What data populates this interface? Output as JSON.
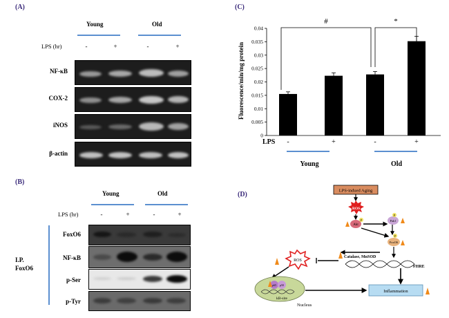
{
  "panelA": {
    "label": "(A)",
    "groups": [
      "Young",
      "Old"
    ],
    "lps_label": "LPS (hr)",
    "lps_signs": [
      "-",
      "+",
      "-",
      "+"
    ],
    "rows": [
      "NF-κB",
      "COX-2",
      "iNOS",
      "β-actin"
    ]
  },
  "panelB": {
    "label": "(B)",
    "groups": [
      "Young",
      "Old"
    ],
    "lps_label": "LPS (hr)",
    "lps_signs": [
      "-",
      "+",
      "-",
      "+"
    ],
    "ip_label_line1": "I.P.",
    "ip_label_line2": "FoxO6",
    "rows": [
      "FoxO6",
      "NF-κB",
      "p-Ser",
      "p-Tyr"
    ]
  },
  "panelC": {
    "label": "(C)",
    "sig_hash": "#",
    "sig_star": "*",
    "lps_label": "LPS",
    "lps_signs": [
      "-",
      "+",
      "-",
      "+"
    ],
    "groups": [
      "Young",
      "Old"
    ]
  },
  "chart_data": {
    "type": "bar",
    "categories": [
      "-",
      "+",
      "-",
      "+"
    ],
    "values": [
      0.0155,
      0.0223,
      0.0228,
      0.0352
    ],
    "errors": [
      0.0008,
      0.0011,
      0.0011,
      0.0018
    ],
    "group_labels": [
      "Young",
      "Old"
    ],
    "ylabel": "Fluorescence/min/mg protein",
    "xlabel": "LPS",
    "ylim": [
      0,
      0.04
    ],
    "yticks": [
      "0",
      "0.005",
      "0.01",
      "0.015",
      "0.02",
      "0.025",
      "0.03",
      "0.035",
      "0.04"
    ],
    "bar_color": "#000000",
    "grid": false
  },
  "panelD": {
    "label": "(D)",
    "top_box": "LPS-indued Aging",
    "ros_top": "ROS",
    "akt": "Akt",
    "p": "P",
    "pak": "Pak1",
    "foxo6": "FoxO6",
    "catalase": "Catalase, MnSOD",
    "fhre": "FHRE",
    "ros_left": "ROS",
    "p65": "p65",
    "p50": "p50",
    "kb_site": "kB-site",
    "nucleus": "Nucleus",
    "inflammation": "Inflammation",
    "colors": {
      "box_fill": "#d98c5f",
      "star_red": "#e02020",
      "flame_orange": "#f08a1a",
      "nucleus_fill": "#c8d89a",
      "inflam_fill": "#b7dcf2",
      "akt_fill": "#d86a7a",
      "pak_fill": "#c9a6d6",
      "foxo_fill": "#e8b27c"
    }
  }
}
